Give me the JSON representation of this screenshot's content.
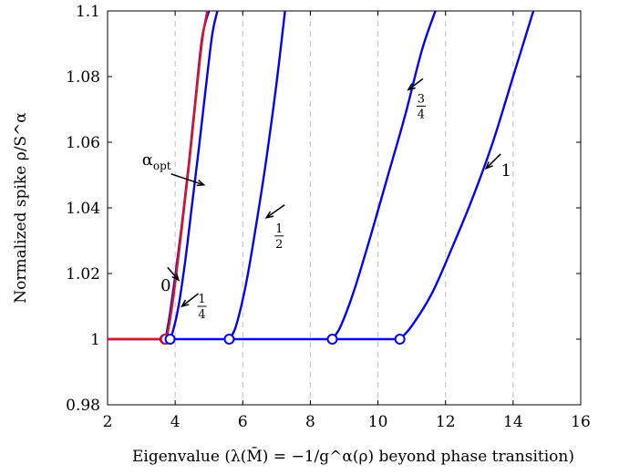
{
  "chart_data": {
    "type": "line",
    "xlabel": "Eigenvalue (λ(M̄) = −1/g^α(ρ) beyond phase transition)",
    "ylabel": "Normalized spike ρ/S^α",
    "xlim": [
      2,
      16
    ],
    "ylim": [
      0.98,
      1.1
    ],
    "xticks": [
      "2",
      "4",
      "6",
      "8",
      "10",
      "12",
      "14",
      "16"
    ],
    "yticks": [
      "0.98",
      "1",
      "1.02",
      "1.04",
      "1.06",
      "1.08",
      "1.1"
    ],
    "grid": "vertical dashed at x ticks",
    "baseline": {
      "x": [
        2,
        10.65
      ],
      "y": 1.0,
      "color": "#0000ff"
    },
    "opt_baseline": {
      "x": [
        2,
        3.72
      ],
      "y": 1.0,
      "color": "#e0141e"
    },
    "series": [
      {
        "name": "0",
        "color": "#0000ff",
        "x0": 3.7,
        "x": [
          3.7,
          3.75,
          3.85,
          4.0,
          4.2,
          4.4,
          4.6,
          4.8,
          5.0
        ],
        "y": [
          1.0,
          1.002,
          1.008,
          1.019,
          1.035,
          1.053,
          1.073,
          1.092,
          1.1
        ]
      },
      {
        "name": "α_opt",
        "color": "#e0141e",
        "x0": 3.72,
        "x": [
          3.72,
          3.78,
          3.88,
          4.0,
          4.2,
          4.4,
          4.6,
          4.8,
          4.95
        ],
        "y": [
          1.0,
          1.002,
          1.008,
          1.017,
          1.034,
          1.052,
          1.072,
          1.091,
          1.1
        ]
      },
      {
        "name": "1/4",
        "color": "#0000ff",
        "x0": 3.85,
        "x": [
          3.85,
          3.95,
          4.1,
          4.3,
          4.5,
          4.7,
          4.9,
          5.1,
          5.25
        ],
        "y": [
          1.0,
          1.003,
          1.01,
          1.024,
          1.041,
          1.058,
          1.076,
          1.093,
          1.1
        ]
      },
      {
        "name": "1/2",
        "color": "#0000ff",
        "x0": 5.6,
        "x": [
          5.6,
          5.8,
          6.1,
          6.4,
          6.7,
          7.0,
          7.25
        ],
        "y": [
          1.0,
          1.004,
          1.017,
          1.035,
          1.055,
          1.078,
          1.1
        ]
      },
      {
        "name": "3/4",
        "color": "#0000ff",
        "x0": 8.65,
        "x": [
          8.65,
          8.9,
          9.3,
          9.8,
          10.3,
          10.8,
          11.3,
          11.7
        ],
        "y": [
          1.0,
          1.004,
          1.015,
          1.032,
          1.05,
          1.068,
          1.088,
          1.1
        ]
      },
      {
        "name": "1",
        "color": "#0000ff",
        "x0": 10.65,
        "x": [
          10.65,
          11.0,
          11.6,
          12.2,
          12.8,
          13.4,
          14.0,
          14.6
        ],
        "y": [
          1.0,
          1.004,
          1.014,
          1.028,
          1.043,
          1.06,
          1.08,
          1.1
        ]
      }
    ],
    "annotations": [
      {
        "label": "α",
        "sub": "opt",
        "target": [
          4.85,
          1.047
        ]
      },
      {
        "label": "0",
        "target": [
          4.1,
          1.018
        ]
      },
      {
        "label": "1/4",
        "target": [
          4.2,
          1.01
        ]
      },
      {
        "label": "1/2",
        "target": [
          6.7,
          1.037
        ]
      },
      {
        "label": "3/4",
        "target": [
          10.9,
          1.076
        ]
      },
      {
        "label": "1",
        "target": [
          13.2,
          1.052
        ]
      }
    ]
  }
}
